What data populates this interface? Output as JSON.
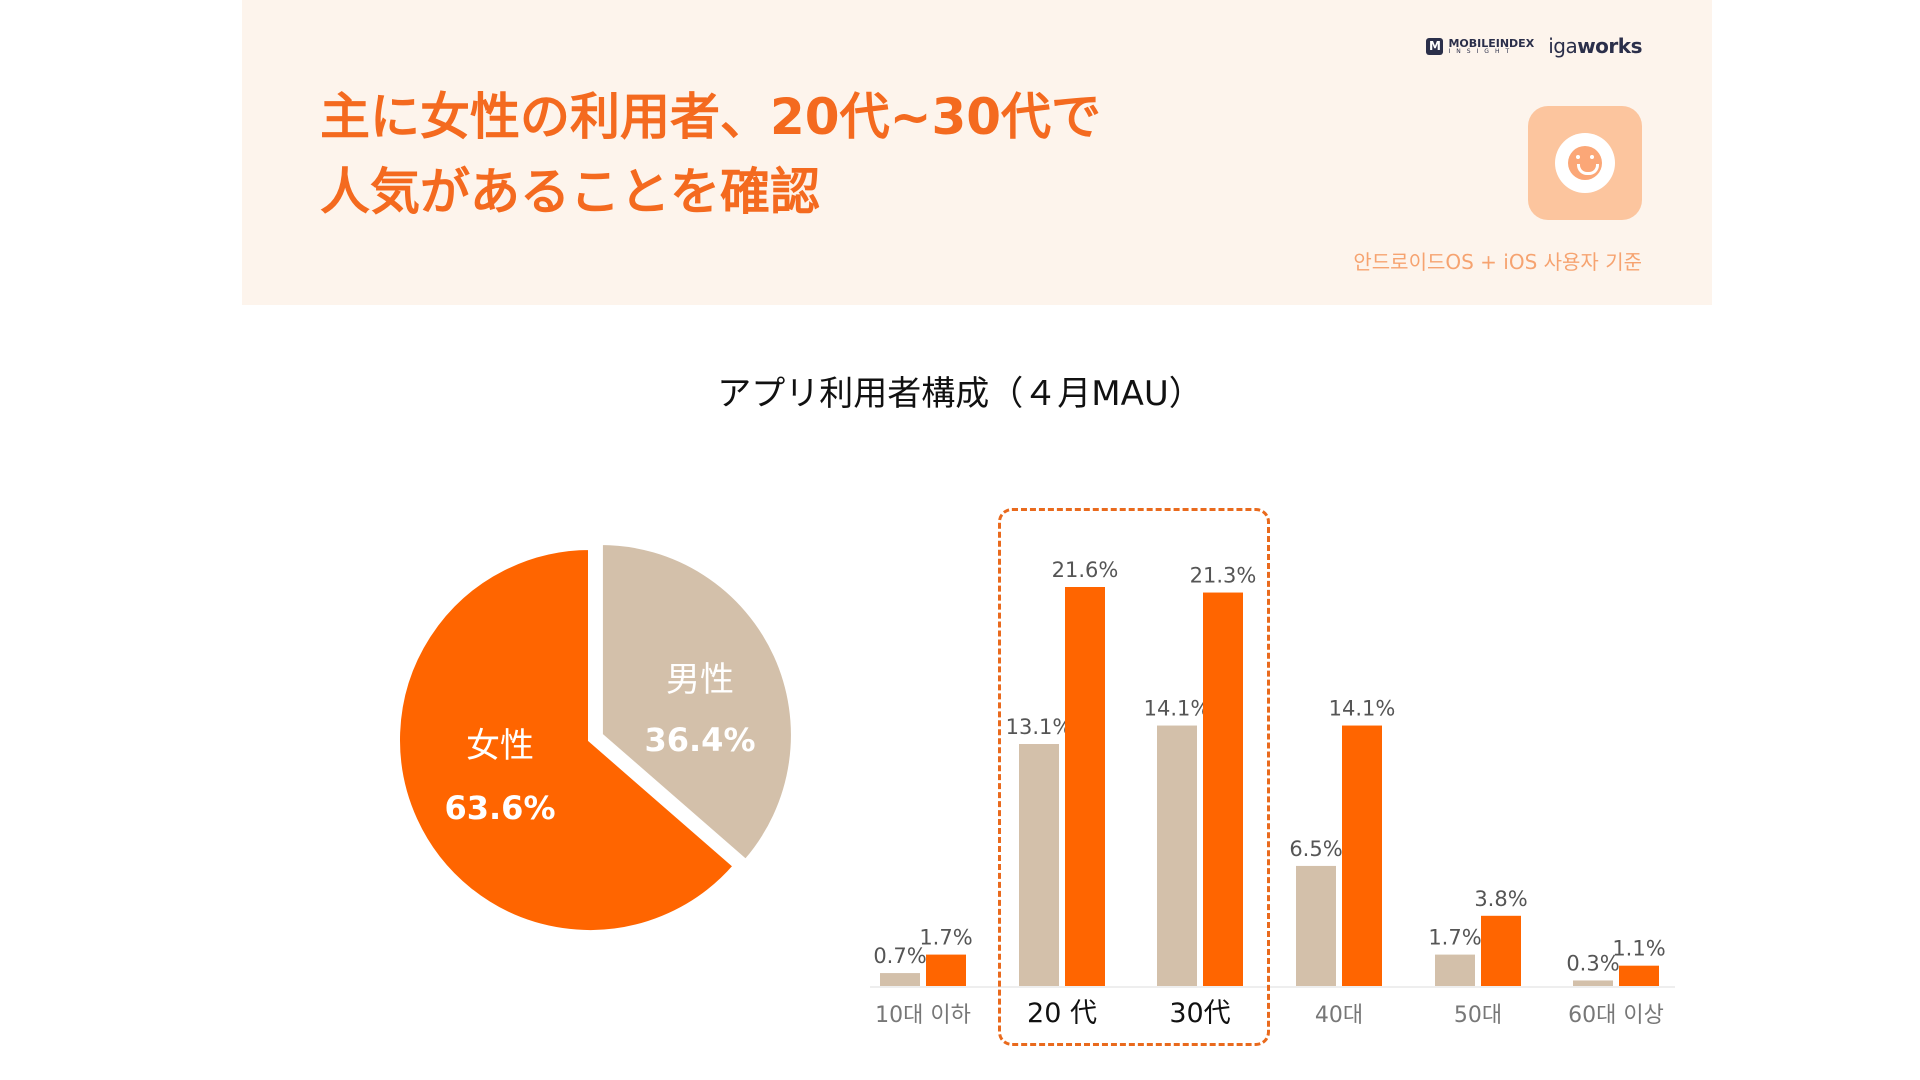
{
  "header": {
    "headline_line1": "主に女性の利用者、20代~30代で",
    "headline_line2": "人気があることを確認",
    "logo_mobileindex": "MOBILEINDEX",
    "logo_mobileindex_sub": "INSIGHT",
    "logo_igaworks_a": "iga",
    "logo_igaworks_b": "works",
    "basis_note": "안드로이드OS + iOS 사용자 기준"
  },
  "colors": {
    "accent": "#f46a1f",
    "female": "#ff6500",
    "male": "#d3c0aa",
    "banner_bg": "#fdf4ec"
  },
  "chart_data": [
    {
      "type": "pie",
      "title": "アプリ利用者構成（４月MAU）",
      "slices": [
        {
          "label": "女性",
          "value": 63.6,
          "display": "63.6%",
          "color": "#ff6500"
        },
        {
          "label": "男性",
          "value": 36.4,
          "display": "36.4%",
          "color": "#d3c0aa"
        }
      ]
    },
    {
      "type": "bar",
      "categories": [
        "10대 이하",
        "20 代",
        "30代",
        "40대",
        "50대",
        "60대 이상"
      ],
      "series": [
        {
          "color": "#d3c0aa",
          "values": [
            0.7,
            13.1,
            14.1,
            6.5,
            1.7,
            0.3
          ],
          "labels": [
            "0.7%",
            "13.1%",
            "14.1%",
            "6.5%",
            "1.7%",
            "0.3%"
          ]
        },
        {
          "color": "#ff6500",
          "values": [
            1.7,
            21.6,
            21.3,
            14.1,
            3.8,
            1.1
          ],
          "labels": [
            "1.7%",
            "21.6%",
            "21.3%",
            "14.1%",
            "3.8%",
            "1.1%"
          ]
        }
      ],
      "highlighted_categories": [
        "20 代",
        "30代"
      ]
    }
  ]
}
